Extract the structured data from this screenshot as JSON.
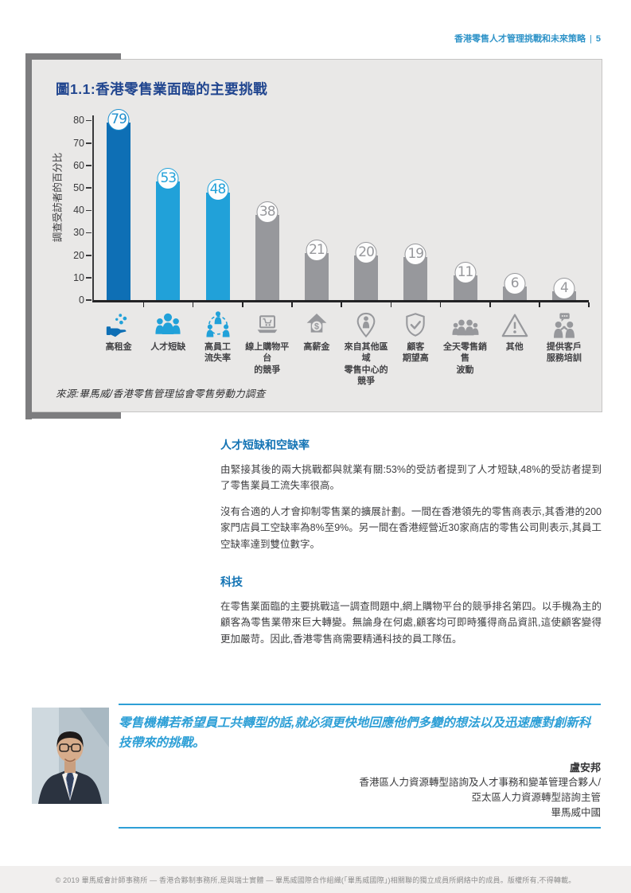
{
  "page": {
    "header_title": "香港零售人才管理挑戰和未來策略",
    "header_divider": "|",
    "page_number": "5",
    "footer": "© 2019 畢馬威會計師事務所 — 香港合夥制事務所,是與瑞士實體 — 畢馬威國際合作組織(「畢馬威國際」)相關聯的獨立成員所網絡中的成員。版權所有,不得轉載。"
  },
  "chart_data": {
    "type": "bar",
    "title": "圖1.1:香港零售業面臨的主要挑戰",
    "ylabel": "調查受訪者的百分比",
    "xlabel": "",
    "source": "來源:畢馬威/香港零售管理協會零售勞動力調查",
    "unit": "%",
    "ylim": [
      0,
      80
    ],
    "yticks": [
      0,
      10,
      20,
      30,
      40,
      50,
      60,
      70,
      80
    ],
    "grid": false,
    "legend": null,
    "categories": [
      "高租金",
      "人才短缺",
      "高員工\n流失率",
      "線上購物平台\n的競爭",
      "高薪金",
      "來自其他區域\n零售中心的\n競爭",
      "顧客\n期望高",
      "全天零售銷售\n波動",
      "其他",
      "提供客戶\n服務培訓"
    ],
    "values": [
      79,
      53,
      48,
      38,
      21,
      20,
      19,
      11,
      6,
      4
    ],
    "bar_colors": [
      "#0e6fb5",
      "#21a1d9",
      "#21a1d9",
      "#97989c",
      "#97989c",
      "#97989c",
      "#97989c",
      "#97989c",
      "#97989c",
      "#97989c"
    ],
    "badge_colors": [
      "#1e8fce",
      "#21a1d9",
      "#21a1d9",
      "#97989c",
      "#97989c",
      "#97989c",
      "#97989c",
      "#97989c",
      "#97989c",
      "#97989c"
    ],
    "icons": [
      "rent-hand-coins-icon",
      "talent-shortage-people-icon",
      "staff-turnover-network-icon",
      "online-shopping-laptop-icon",
      "high-salary-arrow-icon",
      "regional-competition-pin-icon",
      "customer-expectation-shield-icon",
      "sales-fluctuation-people-icon",
      "other-warning-icon",
      "customer-service-training-icon"
    ]
  },
  "sections": [
    {
      "heading": "人才短缺和空缺率",
      "paragraphs": [
        "由緊接其後的兩大挑戰都與就業有關:53%的受訪者提到了人才短缺,48%的受訪者提到了零售業員工流失率很高。",
        "沒有合適的人才會抑制零售業的擴展計劃。一間在香港領先的零售商表示,其香港的200家門店員工空缺率為8%至9%。另一間在香港經營近30家商店的零售公司則表示,其員工空缺率達到雙位數字。"
      ]
    },
    {
      "heading": "科技",
      "paragraphs": [
        "在零售業面臨的主要挑戰這一調查問題中,網上購物平台的競爭排名第四。以手機為主的顧客為零售業帶來巨大轉變。無論身在何處,顧客均可即時獲得商品資訊,這使顧客變得更加嚴苛。因此,香港零售商需要精通科技的員工隊伍。"
      ]
    }
  ],
  "quote": {
    "text": "零售機構若希望員工共轉型的話,就必須更快地回應他們多變的想法以及迅速應對創新科技帶來的挑戰。",
    "name": "盧安邦",
    "title_line1": "香港區人力資源轉型諮詢及人才事務和變革管理合夥人/",
    "title_line2": "亞太區人力資源轉型諮詢主管",
    "company": "畢馬威中國"
  },
  "colors": {
    "accent_dark_blue": "#0e6fb5",
    "accent_light_blue": "#21a1d9",
    "heading_blue": "#1273b4",
    "title_navy": "#20458f",
    "quote_blue": "#2d9fd6",
    "bar_gray": "#97989c",
    "panel_bg": "#e9e8e7",
    "bracket_gray": "#7d7d7f"
  }
}
